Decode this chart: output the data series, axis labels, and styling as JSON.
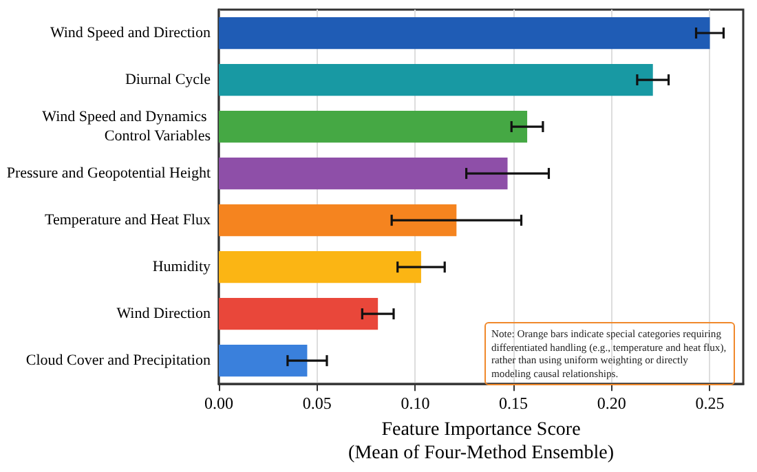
{
  "chart_data": {
    "type": "bar",
    "orientation": "horizontal",
    "xlabel": "Feature Importance Score\n(Mean of Four-Method Ensemble)",
    "categories": [
      "Wind Speed and Direction",
      "Diurnal Cycle",
      "Wind Speed and Dynamics Control Variables",
      "Pressure and Geopotential Height",
      "Temperature and Heat Flux",
      "Humidity",
      "Wind Direction",
      "Cloud Cover and Precipitation"
    ],
    "values": [
      0.25,
      0.221,
      0.157,
      0.147,
      0.121,
      0.103,
      0.081,
      0.045
    ],
    "errors": [
      0.007,
      0.008,
      0.008,
      0.021,
      0.033,
      0.012,
      0.008,
      0.01
    ],
    "colors": [
      "#1f5cb5",
      "#1899a3",
      "#45a844",
      "#8e4fa8",
      "#f5841f",
      "#fbb514",
      "#e9473a",
      "#3a80dc"
    ],
    "xlim": [
      0,
      0.267
    ],
    "xticks": [
      {
        "value": 0,
        "label": "0.00"
      },
      {
        "value": 0.05,
        "label": "0.05"
      },
      {
        "value": 0.1,
        "label": "0.10"
      },
      {
        "value": 0.15,
        "label": "0.15"
      },
      {
        "value": 0.2,
        "label": "0.20"
      },
      {
        "value": 0.25,
        "label": "0.25"
      }
    ],
    "grid": "x",
    "annotations": [
      "Note: Orange bars indicate special categories requiring differentiated handling (e.g., temperature and heat flux), rather than using uniform weighting or directly modeling causal relationships."
    ]
  }
}
